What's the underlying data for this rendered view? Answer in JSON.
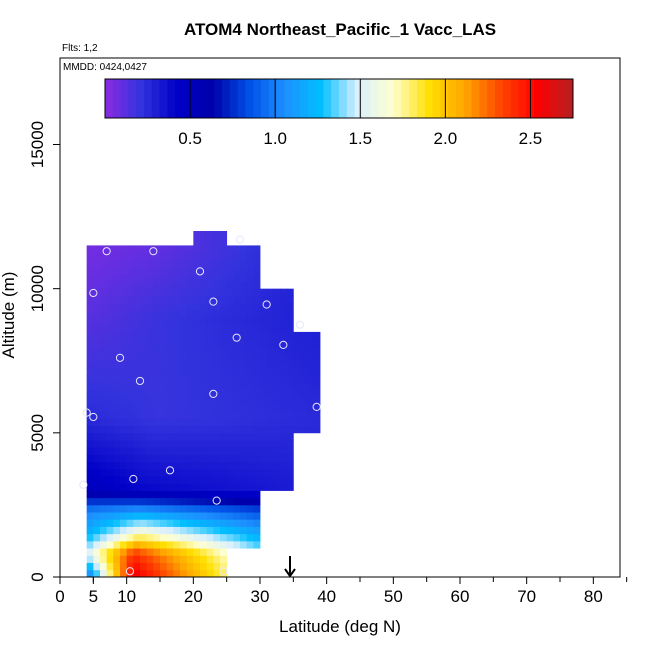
{
  "chart_data": {
    "type": "heatmap",
    "title": "ATOM4 Northeast_Pacific_1 Vacc_LAS",
    "flights_note": "Flts: 1,2",
    "date_note": "MMDD: 0424,0427",
    "xlabel": "Latitude (deg N)",
    "ylabel": "Altitude (m)",
    "xlim": [
      0,
      84
    ],
    "ylim": [
      0,
      18000
    ],
    "xticks": [
      0,
      5,
      10,
      20,
      30,
      40,
      50,
      60,
      70,
      80
    ],
    "xtick_labels": [
      "0",
      "5",
      "10",
      "20",
      "30",
      "40",
      "50",
      "60",
      "70",
      "80"
    ],
    "xticks_minor": [
      5,
      15,
      25,
      35,
      45,
      55,
      65,
      75,
      85
    ],
    "yticks": [
      0,
      5000,
      10000,
      15000
    ],
    "ytick_labels": [
      "0",
      "5000",
      "10000",
      "15000"
    ],
    "colorbar": {
      "min": 0,
      "max": 2.75,
      "ticks": [
        0.5,
        1.0,
        1.5,
        2.0,
        2.5
      ],
      "tick_labels": [
        "0.5",
        "1.0",
        "1.5",
        "2.0",
        "2.5"
      ],
      "colors": [
        "#8a2be2",
        "#3333dd",
        "#0000c8",
        "#0000aa",
        "#0050e6",
        "#1e90ff",
        "#00bfff",
        "#d8efff",
        "#ffffd0",
        "#ffe000",
        "#ffa500",
        "#ff4500",
        "#ff0000",
        "#b22222"
      ]
    },
    "profiles": [
      {
        "lat_min": 4,
        "lat_max": 10,
        "alt_min": 0,
        "alt_max": 11500
      },
      {
        "lat_min": 10,
        "lat_max": 20,
        "alt_min": 0,
        "alt_max": 11500
      },
      {
        "lat_min": 20,
        "lat_max": 25,
        "alt_min": 0,
        "alt_max": 12000
      },
      {
        "lat_min": 25,
        "lat_max": 30,
        "alt_min": 1000,
        "alt_max": 11500
      },
      {
        "lat_min": 30,
        "lat_max": 35,
        "alt_min": 3000,
        "alt_max": 10000
      },
      {
        "lat_min": 35,
        "lat_max": 39,
        "alt_min": 5000,
        "alt_max": 8500
      }
    ],
    "field_samples": [
      {
        "alt": 0,
        "lat_west": 0.9,
        "peak": 2.6,
        "lat_peak": 11,
        "lat_east": 1.0
      },
      {
        "alt": 800,
        "lat_west": 1.5,
        "peak": 2.4,
        "lat_peak": 11,
        "lat_east": 1.0
      },
      {
        "alt": 1500,
        "lat_west": 1.2,
        "peak": 1.7,
        "lat_peak": 12,
        "lat_east": 0.9
      },
      {
        "alt": 2300,
        "lat_west": 1.0,
        "peak": 1.1,
        "lat_peak": 12,
        "lat_east": 0.7
      },
      {
        "alt": 3000,
        "lat_west": 0.5,
        "peak": 0.4,
        "lat_peak": 12,
        "lat_east": 0.3
      },
      {
        "alt": 5500,
        "lat_west": 0.25,
        "peak": 0.2,
        "lat_peak": 15,
        "lat_east": 0.25
      },
      {
        "alt": 9000,
        "lat_west": 0.12,
        "peak": 0.2,
        "lat_peak": 15,
        "lat_east": 0.3
      },
      {
        "alt": 11500,
        "lat_west": 0.05,
        "peak": 0.1,
        "lat_peak": 15,
        "lat_east": 0.3
      }
    ],
    "sample_points": [
      {
        "lat": 7,
        "alt": 11300
      },
      {
        "lat": 14,
        "alt": 11300
      },
      {
        "lat": 27,
        "alt": 11700
      },
      {
        "lat": 21,
        "alt": 10600
      },
      {
        "lat": 5,
        "alt": 9850
      },
      {
        "lat": 23,
        "alt": 9550
      },
      {
        "lat": 31,
        "alt": 9450
      },
      {
        "lat": 36,
        "alt": 8750
      },
      {
        "lat": 26.5,
        "alt": 8300
      },
      {
        "lat": 33.5,
        "alt": 8050
      },
      {
        "lat": 9,
        "alt": 7600
      },
      {
        "lat": 12,
        "alt": 6800
      },
      {
        "lat": 23,
        "alt": 6350
      },
      {
        "lat": 38.5,
        "alt": 5900
      },
      {
        "lat": 4,
        "alt": 5700
      },
      {
        "lat": 5,
        "alt": 5550
      },
      {
        "lat": 16.5,
        "alt": 3700
      },
      {
        "lat": 11,
        "alt": 3400
      },
      {
        "lat": 3.5,
        "alt": 3200
      },
      {
        "lat": 23.5,
        "alt": 2650
      },
      {
        "lat": 10.5,
        "alt": 200
      },
      {
        "lat": 24.5,
        "alt": 200
      }
    ],
    "arrow_marker": {
      "lat": 34.5
    }
  }
}
